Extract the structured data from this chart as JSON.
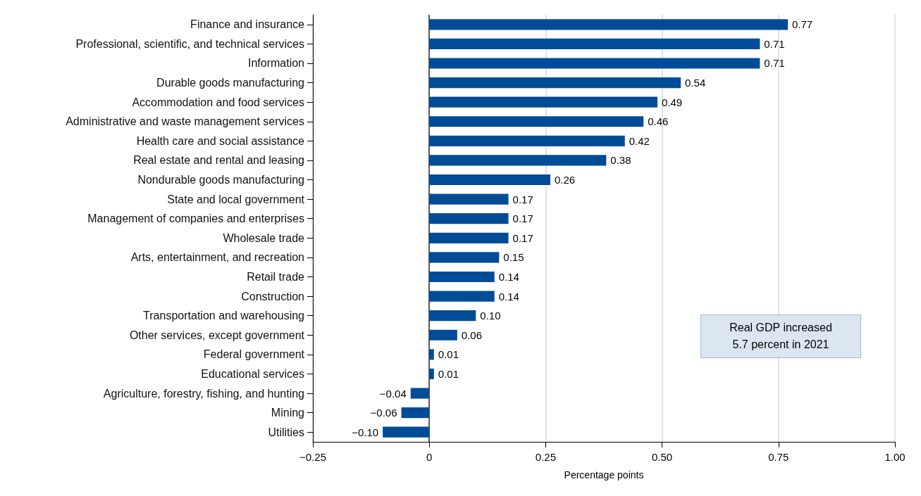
{
  "chart_data": {
    "type": "bar",
    "orientation": "horizontal",
    "xlabel": "Percentage points",
    "categories": [
      "Finance and insurance",
      "Professional, scientific, and technical services",
      "Information",
      "Durable goods manufacturing",
      "Accommodation and food services",
      "Administrative and waste management services",
      "Health care and social assistance",
      "Real estate and rental and leasing",
      "Nondurable goods manufacturing",
      "State and local government",
      "Management of companies and enterprises",
      "Wholesale trade",
      "Arts, entertainment, and recreation",
      "Retail trade",
      "Construction",
      "Transportation and warehousing",
      "Other services, except government",
      "Federal government",
      "Educational services",
      "Agriculture, forestry, fishing, and hunting",
      "Mining",
      "Utilities"
    ],
    "values": [
      0.77,
      0.71,
      0.71,
      0.54,
      0.49,
      0.46,
      0.42,
      0.38,
      0.26,
      0.17,
      0.17,
      0.17,
      0.15,
      0.14,
      0.14,
      0.1,
      0.06,
      0.01,
      0.01,
      -0.04,
      -0.06,
      -0.1
    ],
    "value_labels": [
      "0.77",
      "0.71",
      "0.71",
      "0.54",
      "0.49",
      "0.46",
      "0.42",
      "0.38",
      "0.26",
      "0.17",
      "0.17",
      "0.17",
      "0.15",
      "0.14",
      "0.14",
      "0.10",
      "0.06",
      "0.01",
      "0.01",
      "−0.04",
      "−0.06",
      "−0.10"
    ],
    "color": "#004c97",
    "xlim": [
      -0.25,
      1
    ],
    "xticks": [
      {
        "value": -0.25,
        "label": "−0.25"
      },
      0,
      0.25,
      {
        "value": 0.5,
        "label": "0.50"
      },
      0.75,
      {
        "value": 1,
        "label": "1.00"
      }
    ],
    "grid": "x",
    "annotations": [
      "Real GDP increased\n5.7 percent in 2021"
    ]
  }
}
